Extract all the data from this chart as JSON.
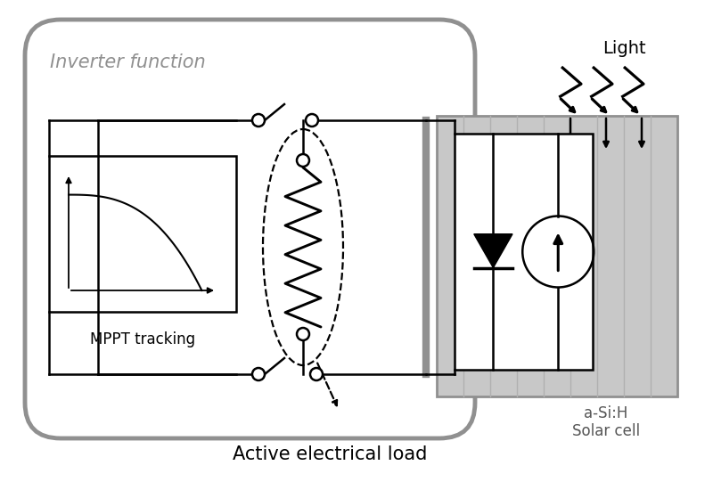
{
  "bg_color": "#ffffff",
  "line_color": "#000000",
  "gray_color": "#909090",
  "panel_gray": "#c8c8c8",
  "stripe_gray": "#b0b0b0",
  "line_width": 1.8,
  "dashed_lw": 1.6,
  "node_r": 0.008,
  "inverter_label": "Inverter function",
  "mppt_label": "MPPT tracking",
  "solar_label1": "a-Si:H",
  "solar_label2": "Solar cell",
  "light_label": "Light",
  "load_label": "Active electrical load"
}
